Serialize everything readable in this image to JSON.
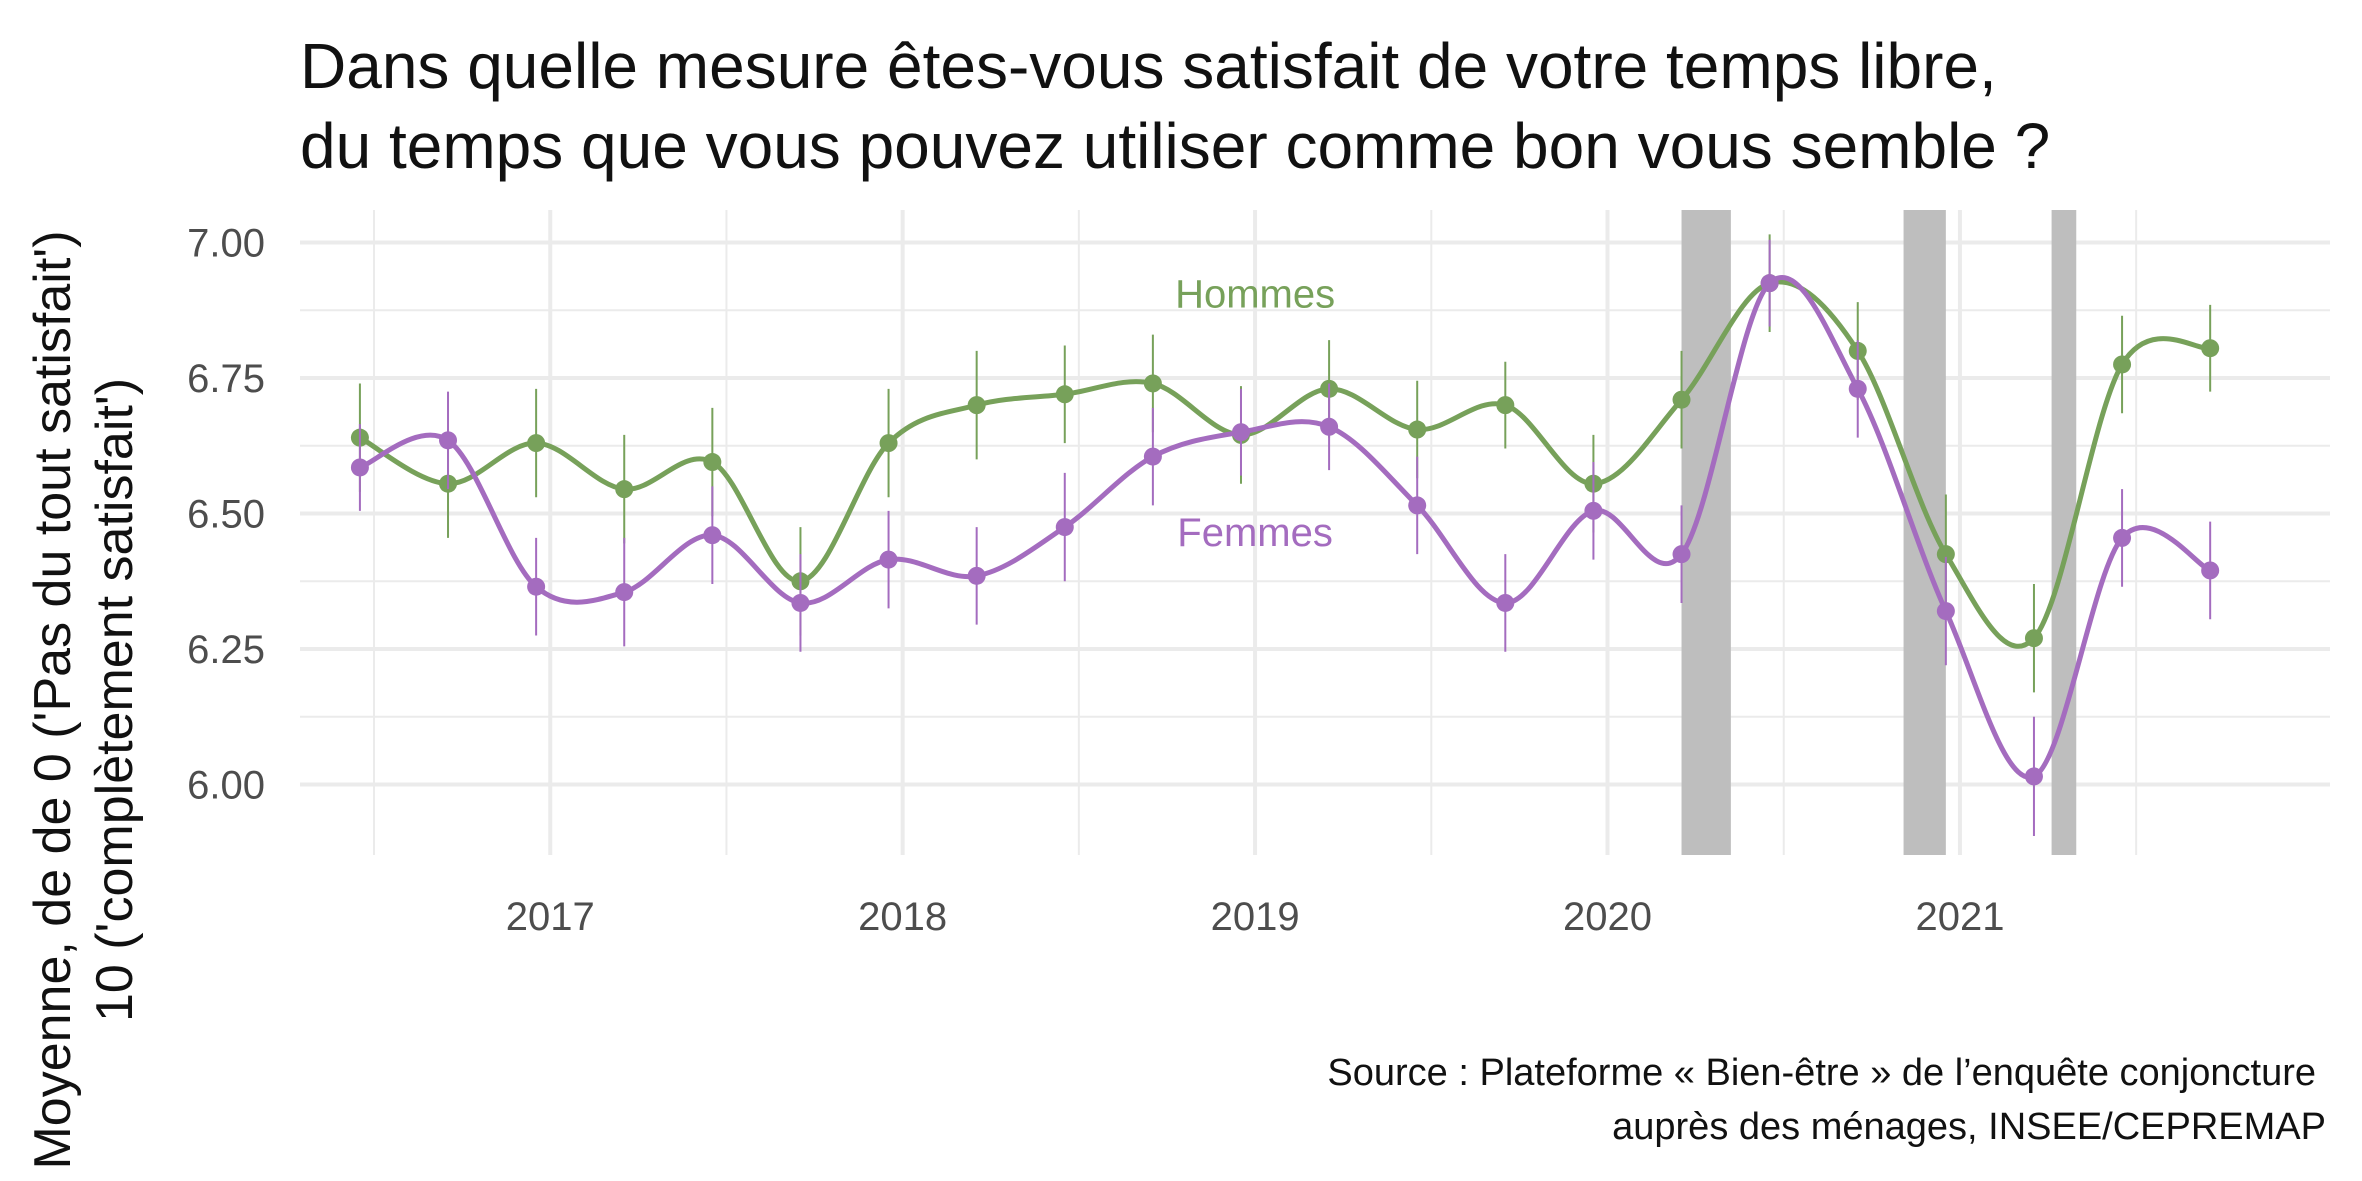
{
  "colors": {
    "hommes": "#77A15A",
    "femmes": "#A46CBF",
    "shade": "#BEBEBE",
    "grid": "#EBEBEB"
  },
  "chart_data": {
    "type": "line",
    "title_lines": [
      "Dans quelle mesure êtes-vous satisfait de votre temps libre,",
      "du temps que vous pouvez utiliser comme bon vous semble ?"
    ],
    "ylabel_lines": [
      "Moyenne, de de 0 ('Pas du tout satisfait')",
      "10 ('complètement satisfait')"
    ],
    "xlabel": "",
    "caption_lines": [
      "Source : Plateforme « Bien-être » de l’enquête conjoncture",
      "auprès des ménages, INSEE/CEPREMAP"
    ],
    "x_ticks": [
      2017,
      2018,
      2019,
      2020,
      2021
    ],
    "y_ticks": [
      "6.00",
      "6.25",
      "6.50",
      "6.75",
      "7.00"
    ],
    "xlim": [
      2016.29,
      2022.05
    ],
    "ylim": [
      5.87,
      7.06
    ],
    "grid": true,
    "shaded_periods": [
      [
        2020.21,
        2020.35
      ],
      [
        2020.84,
        2020.96
      ],
      [
        2021.26,
        2021.33
      ]
    ],
    "series": [
      {
        "name": "Hommes",
        "label_at": [
          2019.0,
          6.88
        ],
        "x": [
          2016.46,
          2016.71,
          2016.96,
          2017.21,
          2017.46,
          2017.71,
          2017.96,
          2018.21,
          2018.46,
          2018.71,
          2018.96,
          2019.21,
          2019.46,
          2019.71,
          2019.96,
          2020.21,
          2020.46,
          2020.71,
          2020.96,
          2021.21,
          2021.46,
          2021.71
        ],
        "y": [
          6.64,
          6.555,
          6.63,
          6.545,
          6.595,
          6.375,
          6.63,
          6.7,
          6.72,
          6.74,
          6.645,
          6.73,
          6.655,
          6.7,
          6.555,
          6.71,
          6.925,
          6.8,
          6.425,
          6.27,
          6.775,
          6.805
        ],
        "err": [
          0.1,
          0.1,
          0.1,
          0.1,
          0.1,
          0.1,
          0.1,
          0.1,
          0.09,
          0.09,
          0.09,
          0.09,
          0.09,
          0.08,
          0.09,
          0.09,
          0.09,
          0.09,
          0.11,
          0.1,
          0.09,
          0.08
        ]
      },
      {
        "name": "Femmes",
        "label_at": [
          2019.0,
          6.44
        ],
        "x": [
          2016.46,
          2016.71,
          2016.96,
          2017.21,
          2017.46,
          2017.71,
          2017.96,
          2018.21,
          2018.46,
          2018.71,
          2018.96,
          2019.21,
          2019.46,
          2019.71,
          2019.96,
          2020.21,
          2020.46,
          2020.71,
          2020.96,
          2021.21,
          2021.46,
          2021.71
        ],
        "y": [
          6.585,
          6.635,
          6.365,
          6.355,
          6.46,
          6.335,
          6.415,
          6.385,
          6.475,
          6.605,
          6.65,
          6.66,
          6.515,
          6.335,
          6.505,
          6.425,
          6.925,
          6.73,
          6.32,
          6.015,
          6.455,
          6.395
        ],
        "err": [
          0.08,
          0.09,
          0.09,
          0.1,
          0.09,
          0.09,
          0.09,
          0.09,
          0.1,
          0.09,
          0.08,
          0.08,
          0.09,
          0.09,
          0.09,
          0.09,
          0.08,
          0.09,
          0.1,
          0.11,
          0.09,
          0.09
        ]
      }
    ]
  }
}
